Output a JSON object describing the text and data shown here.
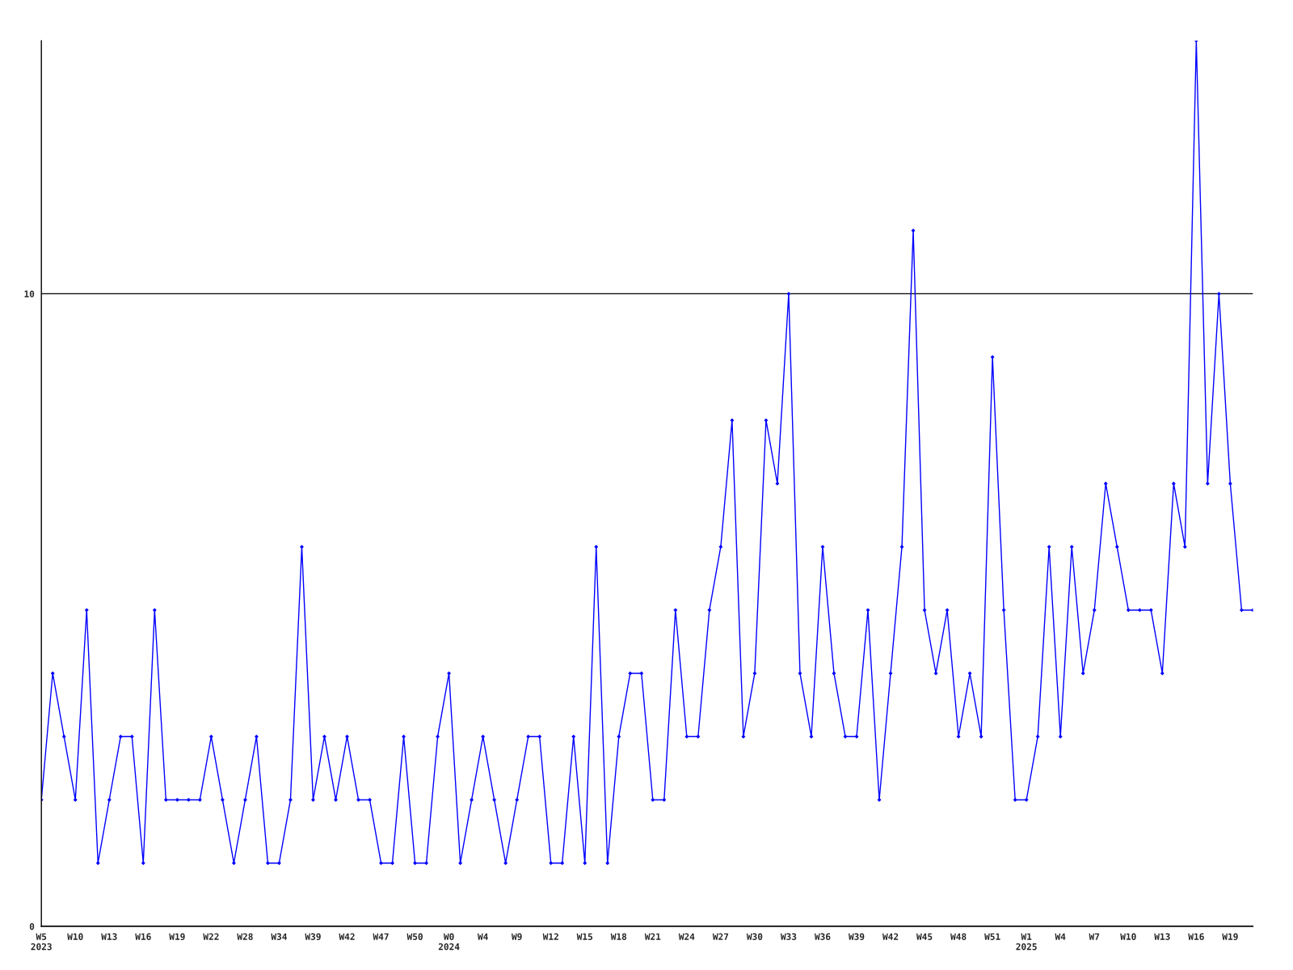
{
  "chart_data": {
    "type": "line",
    "categories": [
      "W5\n2023",
      null,
      null,
      "W10",
      null,
      null,
      "W13",
      null,
      null,
      "W16",
      null,
      null,
      "W19",
      null,
      null,
      "W22",
      null,
      null,
      "W28",
      null,
      null,
      "W34",
      null,
      null,
      "W39",
      null,
      null,
      "W42",
      null,
      null,
      "W47",
      null,
      null,
      "W50",
      null,
      null,
      "W0\n2024",
      null,
      null,
      "W4",
      null,
      null,
      "W9",
      null,
      null,
      "W12",
      null,
      null,
      "W15",
      null,
      null,
      "W18",
      null,
      null,
      "W21",
      null,
      null,
      "W24",
      null,
      null,
      "W27",
      null,
      null,
      "W30",
      null,
      null,
      "W33",
      null,
      null,
      "W36",
      null,
      null,
      "W39",
      null,
      null,
      "W42",
      null,
      null,
      "W45",
      null,
      null,
      "W48",
      null,
      null,
      "W51",
      null,
      null,
      "W1\n2025",
      null,
      null,
      "W4",
      null,
      null,
      "W7",
      null,
      null,
      "W10",
      null,
      null,
      "W13",
      null,
      null,
      "W16",
      null,
      null,
      "W19",
      null,
      null
    ],
    "series": [
      {
        "color": "#0000ff",
        "values": [
          2,
          4,
          3,
          2,
          5,
          1,
          2,
          3,
          3,
          1,
          5,
          2,
          2,
          2,
          2,
          3,
          2,
          1,
          2,
          3,
          1,
          1,
          2,
          6,
          2,
          3,
          2,
          3,
          2,
          2,
          1,
          1,
          3,
          1,
          1,
          3,
          4,
          1,
          2,
          3,
          2,
          1,
          2,
          3,
          3,
          1,
          1,
          3,
          1,
          6,
          1,
          3,
          4,
          4,
          2,
          2,
          5,
          3,
          3,
          5,
          6,
          8,
          3,
          4,
          8,
          7,
          10,
          4,
          3,
          6,
          4,
          3,
          3,
          5,
          2,
          4,
          6,
          11,
          5,
          4,
          5,
          3,
          4,
          3,
          9,
          5,
          2,
          2,
          3,
          6,
          3,
          6,
          4,
          5,
          7,
          6,
          5,
          5,
          5,
          4,
          7,
          6,
          14,
          7,
          10,
          7,
          5,
          5
        ]
      }
    ],
    "ylim": [
      0,
      14
    ],
    "yticks": [
      0,
      10
    ],
    "grid": "y",
    "marker": "diamond",
    "line_style": "solid"
  }
}
